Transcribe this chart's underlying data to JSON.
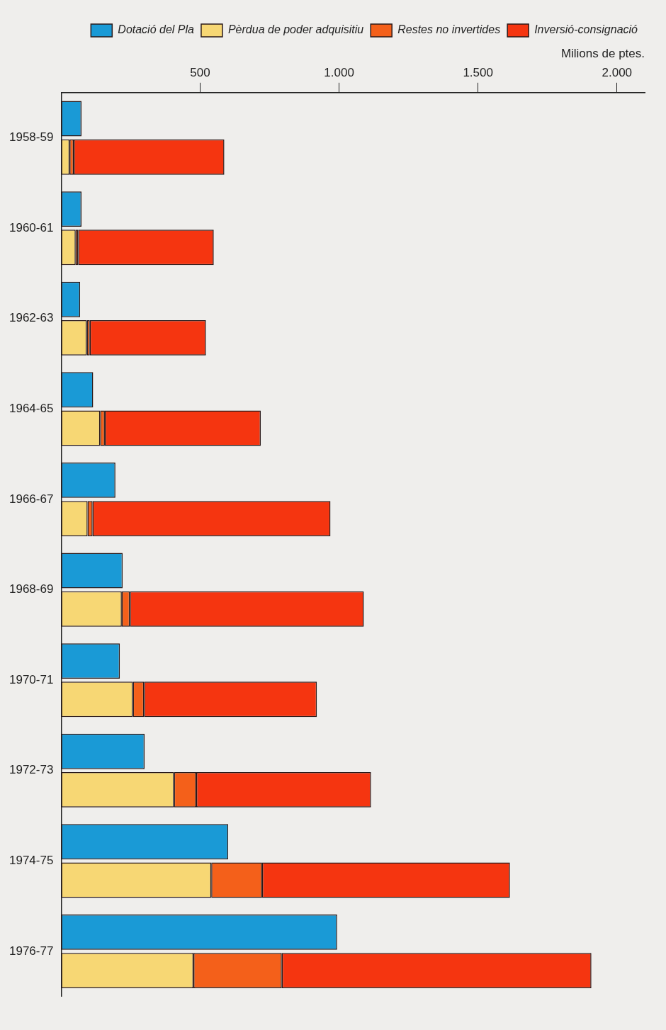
{
  "chart_data": {
    "type": "bar",
    "orientation": "horizontal",
    "xlabel": "Milions de ptes.",
    "categories": [
      "1958-59",
      "1960-61",
      "1962-63",
      "1964-65",
      "1966-67",
      "1968-69",
      "1970-71",
      "1972-73",
      "1974-75",
      "1976-77"
    ],
    "xlim": [
      0,
      2100
    ],
    "xticks": [
      500,
      {
        "value": 1000,
        "label": "1.000"
      },
      {
        "value": 1500,
        "label": "1.500"
      },
      {
        "value": 2000,
        "label": "2.000"
      }
    ],
    "grid": false,
    "legend": "top right",
    "series": [
      {
        "name": "Dotació del Pla",
        "color": "#1a9ad6",
        "values": [
          73,
          73,
          68,
          115,
          195,
          221,
          211,
          300,
          601,
          993
        ]
      },
      {
        "name": "Pèrdua de poder adquisitiu",
        "color": "#f7d774",
        "values": [
          30,
          52,
          92,
          140,
          95,
          218,
          258,
          406,
          540,
          476
        ],
        "base": [
          0,
          0,
          0,
          0,
          0,
          0,
          0,
          0,
          0,
          0
        ]
      },
      {
        "name": "Restes no invertides",
        "color": "#f4601a",
        "values": [
          15,
          9,
          11,
          17,
          18,
          29,
          40,
          80,
          183,
          318
        ],
        "base": [
          30,
          52,
          92,
          140,
          95,
          218,
          258,
          406,
          540,
          476
        ]
      },
      {
        "name": "Inversió-consignació",
        "color": "#f53510",
        "values": [
          542,
          488,
          418,
          561,
          856,
          842,
          622,
          629,
          892,
          1114
        ],
        "base": [
          45,
          61,
          103,
          157,
          113,
          247,
          298,
          486,
          723,
          794
        ]
      }
    ]
  }
}
